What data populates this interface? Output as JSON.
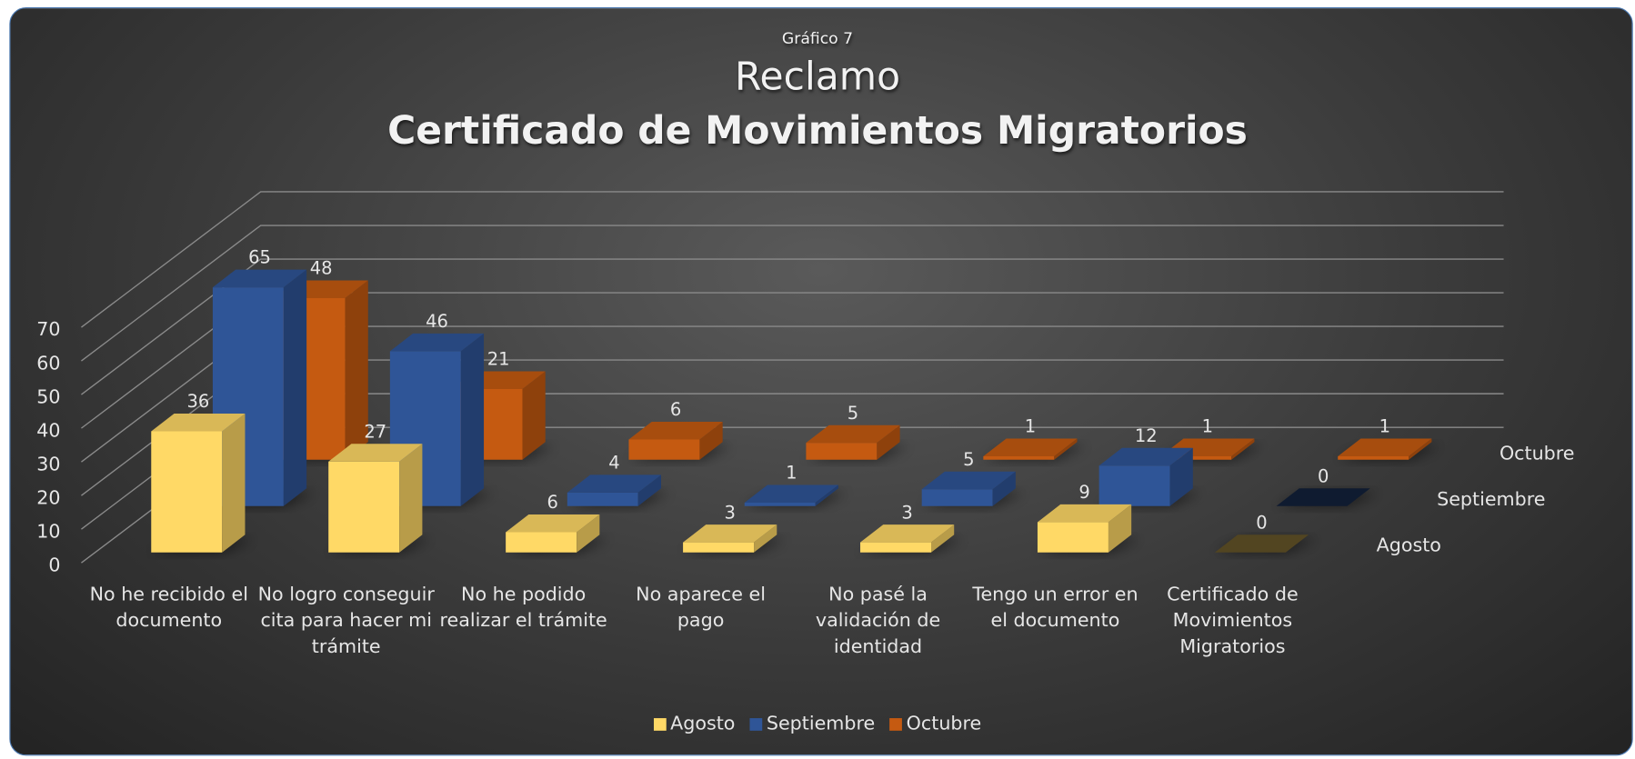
{
  "chart_data": {
    "type": "bar3d",
    "supertitle": "Gráfico 7",
    "title": "Reclamo",
    "subtitle": "Certificado de Movimientos Migratorios",
    "categories": [
      "No he recibido el documento",
      "No logro conseguir cita para hacer mi trámite",
      "No he podido realizar el trámite",
      "No aparece el pago",
      "No pasé la validación de identidad",
      "Tengo un error en el documento",
      "Certificado de Movimientos Migratorios"
    ],
    "series": [
      {
        "name": "Agosto",
        "color": "#ffd966",
        "values": [
          36,
          27,
          6,
          3,
          3,
          9,
          0
        ]
      },
      {
        "name": "Septiembre",
        "color": "#2f5597",
        "values": [
          65,
          46,
          4,
          1,
          5,
          12,
          0
        ]
      },
      {
        "name": "Octubre",
        "color": "#c55a11",
        "values": [
          48,
          21,
          6,
          5,
          1,
          1,
          1
        ]
      }
    ],
    "ylim": [
      0,
      70
    ],
    "yticks": [
      0,
      10,
      20,
      30,
      40,
      50,
      60,
      70
    ],
    "grid": true,
    "legend": "bottom"
  }
}
